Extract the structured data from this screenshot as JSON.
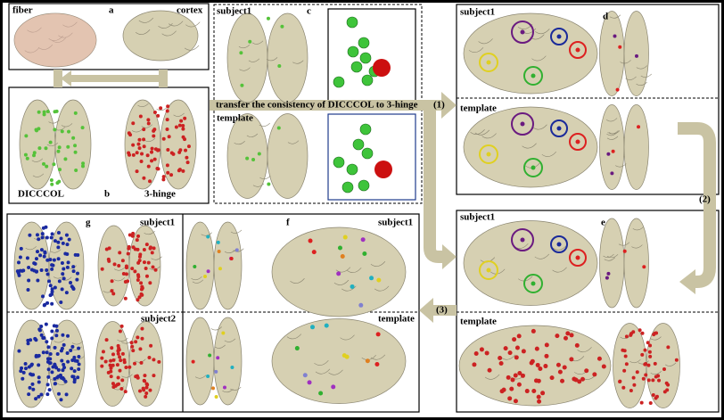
{
  "panel_a": {
    "fiber": "fiber",
    "label": "a",
    "cortex": "cortex"
  },
  "panel_b": {
    "dicccol": "DICCCOL",
    "label": "b",
    "hinge": "3-hinge"
  },
  "panel_c": {
    "subject": "subject1",
    "label": "c",
    "template": "template",
    "transfer": "transfer the consistency of  DICCCOL to 3-hinge"
  },
  "arrows": [
    "(1)",
    "(2)",
    "(3)"
  ],
  "panel_d": {
    "subject": "subject1",
    "label": "d",
    "template": "template"
  },
  "panel_e": {
    "subject": "subject1",
    "label": "e",
    "template": "template"
  },
  "panel_g": {
    "label": "g",
    "subject1": "subject1",
    "subject2": "subject2"
  },
  "panel_f": {
    "label": "f",
    "subject": "subject1",
    "template": "template"
  }
}
